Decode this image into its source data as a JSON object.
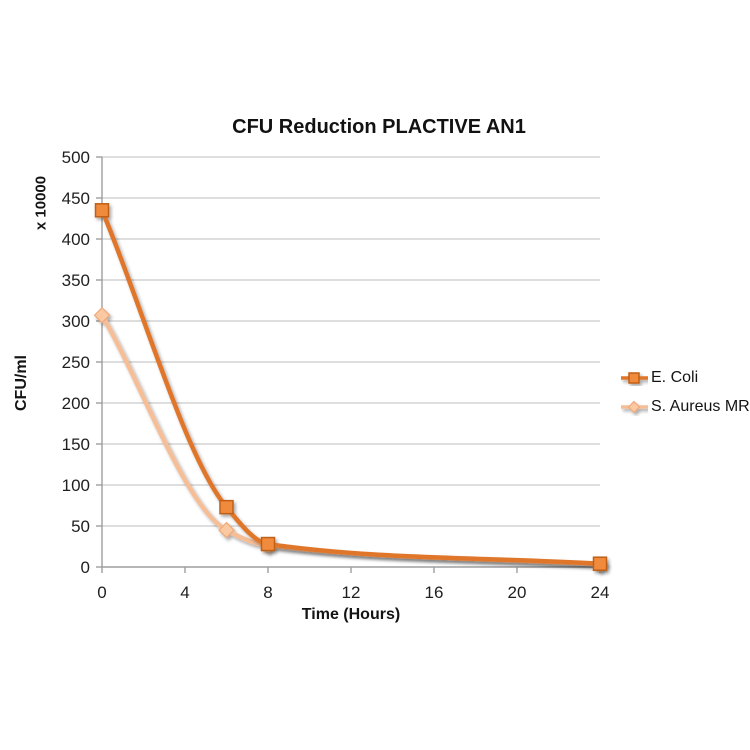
{
  "chart_data": {
    "type": "line",
    "title": "CFU Reduction PLACTIVE AN1",
    "xlabel": "Time (Hours)",
    "ylabel": "CFU/ml",
    "y_display_units_label": "x 10000",
    "x": [
      0,
      6,
      8,
      24
    ],
    "series": [
      {
        "name": "S. Aureus MR",
        "values": [
          307,
          45,
          26,
          3
        ],
        "line_color": "#F6BE97",
        "marker": "diamond",
        "marker_fill": "#FAC8A1",
        "marker_stroke": "#F0A878"
      },
      {
        "name": "E. Coli",
        "values": [
          435,
          73,
          28,
          4
        ],
        "line_color": "#E0762B",
        "marker": "square",
        "marker_fill": "#F08A3E",
        "marker_stroke": "#C05F17"
      }
    ],
    "xlim": [
      0,
      24
    ],
    "ylim": [
      0,
      500
    ],
    "x_ticks": [
      0,
      4,
      8,
      12,
      16,
      20,
      24
    ],
    "y_ticks": [
      0,
      50,
      100,
      150,
      200,
      250,
      300,
      350,
      400,
      450,
      500
    ],
    "grid": "horizontal",
    "legend_position": "right",
    "styles": {
      "gridline_color": "#C9C9C9",
      "axis_color": "#9E9E9E",
      "tick_label_color": "#1F1F1F"
    }
  }
}
